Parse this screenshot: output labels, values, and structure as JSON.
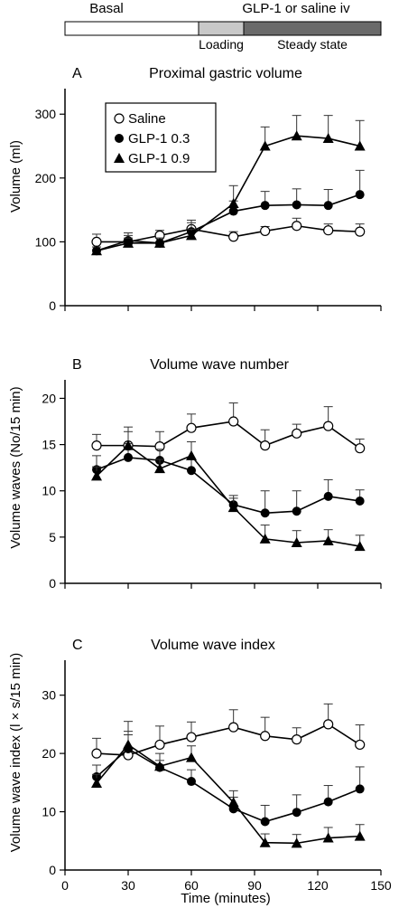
{
  "header_bar": {
    "basal_label": "Basal",
    "infusion_label": "GLP-1 or saline iv",
    "loading_label": "Loading",
    "steady_label": "Steady state",
    "colors": {
      "basal": "#ffffff",
      "loading": "#c8c8c8",
      "steady": "#6a6a6a"
    }
  },
  "xaxis": {
    "label": "Time (minutes)",
    "ticks": [
      0,
      30,
      60,
      90,
      120,
      150
    ],
    "range": [
      0,
      150
    ]
  },
  "legend": [
    {
      "name": "Saline",
      "marker": "open-circle"
    },
    {
      "name": "GLP-1 0.3",
      "marker": "filled-circle"
    },
    {
      "name": "GLP-1 0.9",
      "marker": "filled-triangle"
    }
  ],
  "chart_data": [
    {
      "type": "line",
      "panel": "A",
      "title": "Proximal gastric volume",
      "ylabel": "Volume (ml)",
      "xlabel": "",
      "ylim": [
        0,
        340
      ],
      "yticks": [
        0,
        100,
        200,
        300
      ],
      "x": [
        15,
        30,
        45,
        60,
        80,
        95,
        110,
        125,
        140
      ],
      "legend_position": "top-left",
      "series": [
        {
          "name": "Saline",
          "marker": "open-circle",
          "values": [
            100,
            100,
            110,
            120,
            108,
            117,
            125,
            118,
            116
          ],
          "errors": [
            12,
            10,
            8,
            10,
            8,
            7,
            12,
            10,
            12
          ]
        },
        {
          "name": "GLP-1 0.3",
          "marker": "filled-circle",
          "values": [
            86,
            102,
            98,
            116,
            148,
            157,
            158,
            157,
            174
          ],
          "errors": [
            6,
            12,
            8,
            18,
            16,
            22,
            25,
            25,
            38
          ]
        },
        {
          "name": "GLP-1 0.9",
          "marker": "filled-triangle",
          "values": [
            86,
            98,
            98,
            110,
            160,
            250,
            266,
            262,
            250
          ],
          "errors": [
            6,
            8,
            8,
            10,
            28,
            30,
            32,
            36,
            40
          ]
        }
      ]
    },
    {
      "type": "line",
      "panel": "B",
      "title": "Volume wave number",
      "ylabel": "Volume waves (No/15 min)",
      "xlabel": "",
      "ylim": [
        0,
        22
      ],
      "yticks": [
        0,
        5,
        10,
        15,
        20
      ],
      "x": [
        15,
        30,
        45,
        60,
        80,
        95,
        110,
        125,
        140
      ],
      "series": [
        {
          "name": "Saline",
          "marker": "open-circle",
          "values": [
            14.9,
            14.9,
            14.8,
            16.8,
            17.5,
            14.9,
            16.2,
            17.0,
            14.6
          ],
          "errors": [
            1.2,
            1.5,
            1.6,
            1.5,
            2.0,
            1.7,
            1.0,
            2.1,
            1.0
          ]
        },
        {
          "name": "GLP-1 0.3",
          "marker": "filled-circle",
          "values": [
            12.3,
            13.6,
            13.3,
            12.2,
            8.5,
            7.6,
            7.8,
            9.4,
            8.9
          ],
          "errors": [
            1.5,
            1.5,
            1.2,
            1.2,
            1.0,
            2.4,
            2.2,
            1.8,
            1.2
          ]
        },
        {
          "name": "GLP-1 0.9",
          "marker": "filled-triangle",
          "values": [
            11.6,
            14.9,
            12.4,
            13.8,
            8.2,
            4.8,
            4.4,
            4.6,
            4.0
          ],
          "errors": [
            1.0,
            2.0,
            1.0,
            1.5,
            1.0,
            1.5,
            1.3,
            1.2,
            1.2
          ]
        }
      ]
    },
    {
      "type": "line",
      "panel": "C",
      "title": "Volume wave index",
      "ylabel": "Volume wave index (l × s/15 min)",
      "xlabel": "Time (minutes)",
      "ylim": [
        0,
        36
      ],
      "yticks": [
        0,
        10,
        20,
        30
      ],
      "x": [
        15,
        30,
        45,
        60,
        80,
        95,
        110,
        125,
        140
      ],
      "series": [
        {
          "name": "Saline",
          "marker": "open-circle",
          "values": [
            20.0,
            19.7,
            21.5,
            22.8,
            24.5,
            23.0,
            22.4,
            25.0,
            21.5
          ],
          "errors": [
            2.6,
            3.5,
            3.2,
            2.6,
            3.0,
            3.2,
            2.0,
            3.5,
            3.4
          ]
        },
        {
          "name": "GLP-1 0.3",
          "marker": "filled-circle",
          "values": [
            16.0,
            20.8,
            17.6,
            15.2,
            10.5,
            8.3,
            9.9,
            11.7,
            13.9
          ],
          "errors": [
            2.0,
            3.0,
            2.4,
            2.0,
            2.0,
            2.8,
            3.0,
            2.8,
            3.8
          ]
        },
        {
          "name": "GLP-1 0.9",
          "marker": "filled-triangle",
          "values": [
            14.9,
            21.5,
            17.8,
            19.3,
            11.6,
            4.7,
            4.6,
            5.5,
            5.8
          ],
          "errors": [
            1.5,
            4.0,
            1.0,
            2.0,
            2.0,
            1.5,
            1.5,
            1.8,
            2.0
          ]
        }
      ]
    }
  ]
}
